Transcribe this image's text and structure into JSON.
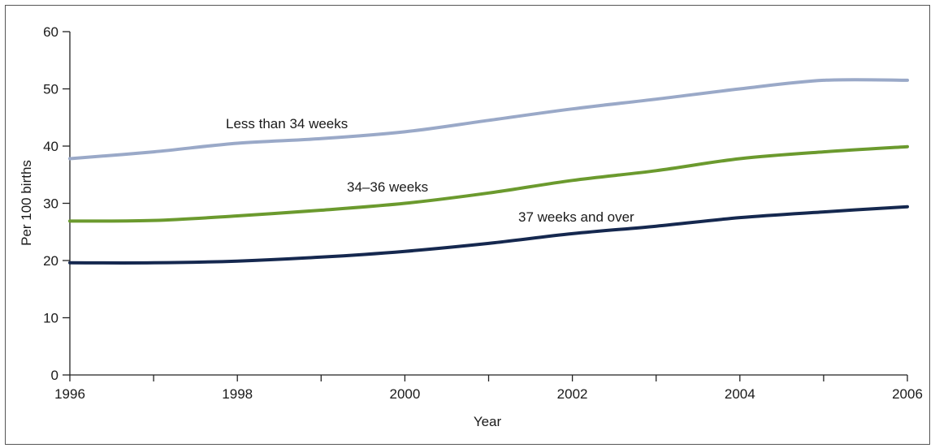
{
  "chart_data": {
    "type": "line",
    "title": "",
    "xlabel": "Year",
    "ylabel": "Per 100 births",
    "xlim": [
      1996,
      2006
    ],
    "ylim": [
      0,
      60
    ],
    "x_ticks": [
      1996,
      1998,
      2000,
      2002,
      2004,
      2006
    ],
    "y_ticks": [
      0,
      10,
      20,
      30,
      40,
      50,
      60
    ],
    "x": [
      1996,
      1997,
      1998,
      1999,
      2000,
      2001,
      2002,
      2003,
      2004,
      2005,
      2006
    ],
    "grid": false,
    "legend": "inline labels",
    "series": [
      {
        "name": "Less than 34 weeks",
        "color": "#9aa9c8",
        "values": [
          37.8,
          39.0,
          40.5,
          41.3,
          42.5,
          44.5,
          46.5,
          48.2,
          50.0,
          51.5,
          51.5
        ]
      },
      {
        "name": "34–36 weeks",
        "color": "#6b9a2e",
        "values": [
          26.9,
          27.0,
          27.8,
          28.8,
          30.0,
          31.8,
          34.0,
          35.7,
          37.8,
          39.0,
          39.9
        ]
      },
      {
        "name": "37 weeks and over",
        "color": "#15284f",
        "values": [
          19.6,
          19.6,
          19.9,
          20.6,
          21.6,
          23.0,
          24.7,
          26.0,
          27.5,
          28.5,
          29.4
        ]
      }
    ]
  }
}
